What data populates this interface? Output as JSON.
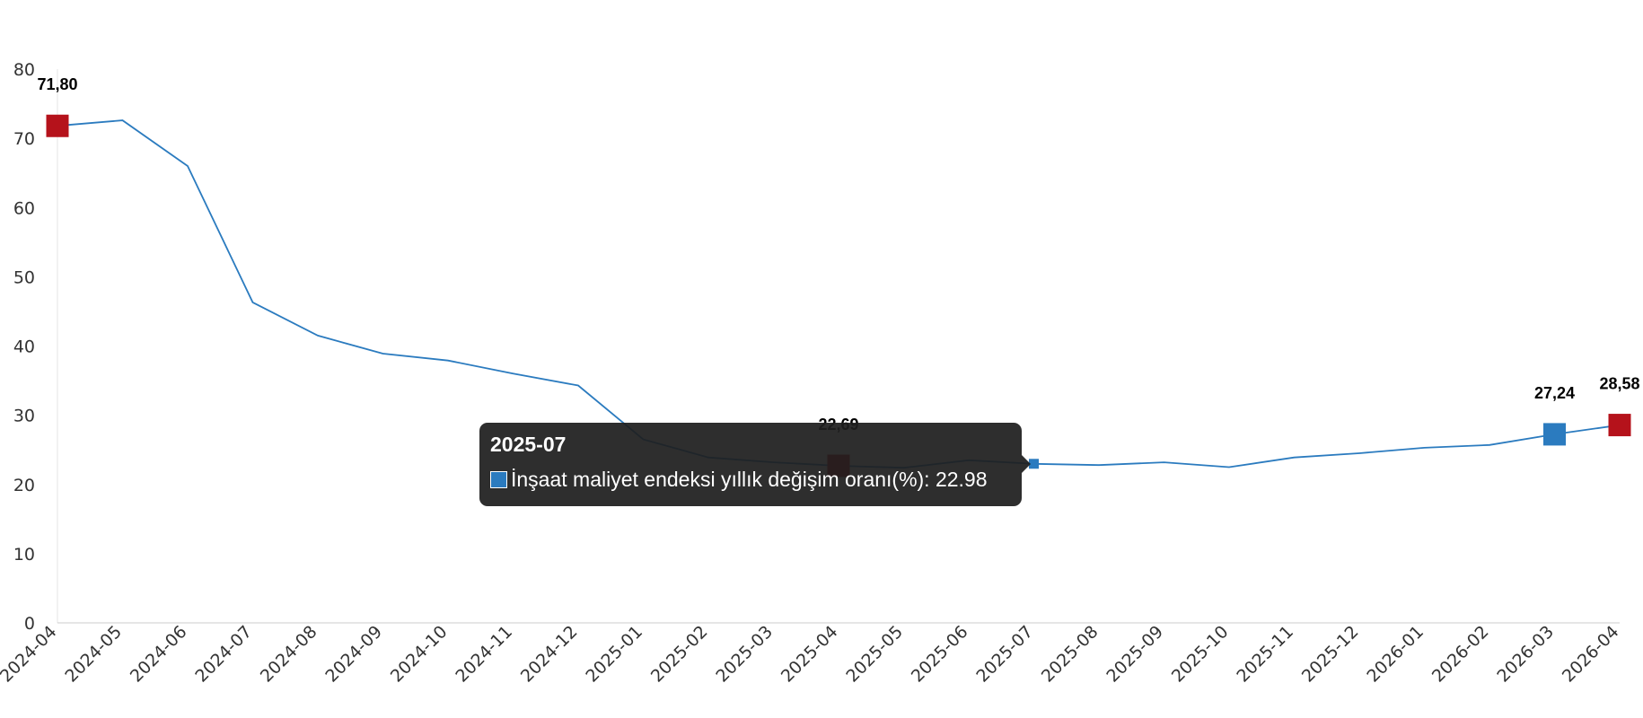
{
  "chart_data": {
    "type": "line",
    "title": "",
    "xlabel": "",
    "ylabel": "",
    "ylim": [
      0,
      80
    ],
    "yticks": [
      0,
      10,
      20,
      30,
      40,
      50,
      60,
      70,
      80
    ],
    "grid": false,
    "categories": [
      "2024-04",
      "2024-05",
      "2024-06",
      "2024-07",
      "2024-08",
      "2024-09",
      "2024-10",
      "2024-11",
      "2024-12",
      "2025-01",
      "2025-02",
      "2025-03",
      "2025-04",
      "2025-05",
      "2025-06",
      "2025-07",
      "2025-08",
      "2025-09",
      "2025-10",
      "2025-11",
      "2025-12",
      "2026-01",
      "2026-02",
      "2026-03",
      "2026-04"
    ],
    "series": [
      {
        "name": "İnşaat maliyet endeksi yıllık değişim oranı(%)",
        "color": "#2b7bbf",
        "values": [
          71.8,
          72.6,
          66.0,
          46.3,
          41.5,
          38.9,
          37.9,
          36.0,
          34.3,
          26.5,
          23.9,
          23.2,
          22.69,
          22.4,
          23.5,
          22.98,
          22.8,
          23.2,
          22.5,
          23.9,
          24.5,
          25.3,
          25.7,
          27.24,
          28.58
        ]
      }
    ],
    "markers": [
      {
        "category": "2024-04",
        "color": "#b5121b",
        "label": "71,80"
      },
      {
        "category": "2025-04",
        "color": "#b5121b",
        "label": "22,69"
      },
      {
        "category": "2026-03",
        "color": "#2b7bbf",
        "label": "27,24"
      },
      {
        "category": "2026-04",
        "color": "#b5121b",
        "label": "28,58"
      }
    ],
    "highlight": {
      "category": "2025-07",
      "color": "#2b7bbf"
    }
  },
  "tooltip": {
    "title": "2025-07",
    "series_label": "İnşaat maliyet endeksi yıllık değişim oranı(%): 22.98",
    "swatch_color": "#2b7bbf"
  }
}
